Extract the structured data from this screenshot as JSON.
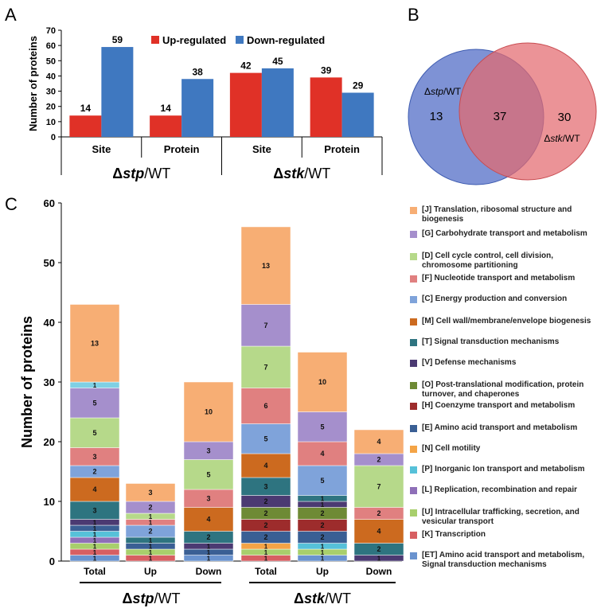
{
  "panel_labels": {
    "a": "A",
    "b": "B",
    "c": "C"
  },
  "chart_data": [
    {
      "type": "bar",
      "panel": "A",
      "ylabel": "Number of proteins",
      "ylim": [
        0,
        70
      ],
      "yticks": [
        "0",
        "10",
        "20",
        "30",
        "40",
        "50",
        "60",
        "70"
      ],
      "categories": [
        "Site",
        "Protein",
        "Site",
        "Protein"
      ],
      "groups": [
        {
          "prefix": "Δ",
          "italic": "stp",
          "suffix": "/WT"
        },
        {
          "prefix": "Δ",
          "italic": "stk",
          "suffix": "/WT"
        }
      ],
      "series": [
        {
          "name": "Up-regulated",
          "color": "#e03127",
          "values": [
            14,
            14,
            42,
            39
          ]
        },
        {
          "name": "Down-regulated",
          "color": "#3f78c0",
          "values": [
            59,
            38,
            45,
            29
          ]
        }
      ]
    },
    {
      "type": "venn",
      "panel": "B",
      "sets": [
        {
          "prefix": "Δ",
          "italic": "stp",
          "suffix": "/WT",
          "only": "13",
          "color": "#5a73c9"
        },
        {
          "prefix": "Δ",
          "italic": "stk",
          "suffix": "/WT",
          "only": "30",
          "color": "#e36a6f"
        }
      ],
      "intersection": "37"
    },
    {
      "type": "stacked_bar",
      "panel": "C",
      "ylabel": "Number of proteins",
      "ylim": [
        0,
        60
      ],
      "yticks": [
        "0",
        "10",
        "20",
        "30",
        "40",
        "50",
        "60"
      ],
      "categories": [
        "Total",
        "Up",
        "Down",
        "Total",
        "Up",
        "Down"
      ],
      "groups": [
        {
          "prefix": "Δ",
          "italic": "stp",
          "suffix": "/WT"
        },
        {
          "prefix": "Δ",
          "italic": "stk",
          "suffix": "/WT"
        }
      ],
      "series": [
        {
          "name": "[ET] Amino acid transport and metabolism, Signal transduction mechanisms",
          "color": "#6a93cf",
          "values": [
            1,
            0,
            1,
            0,
            1,
            0
          ]
        },
        {
          "name": "[K] Transcription",
          "color": "#d75f62",
          "values": [
            1,
            1,
            0,
            1,
            0,
            0
          ]
        },
        {
          "name": "[U] Intracellular trafficking, secretion, and vesicular transport",
          "color": "#a8cf6c",
          "values": [
            1,
            1,
            0,
            1,
            1,
            0
          ]
        },
        {
          "name": "[L] Replication, recombination and repair",
          "color": "#8e6fb8",
          "values": [
            1,
            0,
            0,
            0,
            0,
            0
          ]
        },
        {
          "name": "[P] Inorganic ion transport and metabolism",
          "color": "#56c1d9",
          "values": [
            1,
            0,
            0,
            0,
            1,
            0
          ]
        },
        {
          "name": "[N] Cell motility",
          "color": "#f4a446",
          "values": [
            0,
            0,
            0,
            1,
            0,
            0
          ]
        },
        {
          "name": "[E] Amino acid transport and metabolism",
          "color": "#3a5f94",
          "values": [
            1,
            1,
            1,
            2,
            2,
            0
          ]
        },
        {
          "name": "[H] Coenzyme transport and metabolism",
          "color": "#9d2c2c",
          "values": [
            0,
            0,
            0,
            2,
            2,
            0
          ]
        },
        {
          "name": "[O] Post-translational modification, protein turnover, and chaperones",
          "color": "#6e8a35",
          "values": [
            0,
            0,
            0,
            2,
            2,
            0
          ]
        },
        {
          "name": "[V] Defense mechanisms",
          "color": "#4b3a72",
          "values": [
            1,
            0,
            1,
            2,
            1,
            1
          ]
        },
        {
          "name": "[T] Signal transduction mechanisms",
          "color": "#2e7480",
          "values": [
            3,
            1,
            2,
            3,
            1,
            2
          ]
        },
        {
          "name": "[M] Cell wall/membrane/envelope biogenesis",
          "color": "#cc6a1f",
          "values": [
            4,
            0,
            4,
            4,
            0,
            4
          ]
        },
        {
          "name": "[C] Energy production and conversion",
          "color": "#7fa3da",
          "values": [
            2,
            2,
            0,
            5,
            5,
            0
          ]
        },
        {
          "name": "[F] Nucleotide transport and metabolism",
          "color": "#e08080",
          "values": [
            3,
            1,
            3,
            6,
            4,
            2
          ]
        },
        {
          "name": "[D] Cell cycle control, cell division, chromosome partitioning",
          "color": "#b6d98a",
          "values": [
            5,
            1,
            5,
            7,
            0,
            7
          ]
        },
        {
          "name": "[G] Carbohydrate transport and metabolism",
          "color": "#a58fcc",
          "values": [
            5,
            2,
            3,
            7,
            5,
            2
          ]
        },
        {
          "name": "[P] Inorganic Ion transport and metabolism",
          "color": "#7fd0e4",
          "values": [
            1,
            0,
            0,
            0,
            0,
            0
          ]
        },
        {
          "name": "[J] Translation, ribosomal structure and biogenesis",
          "color": "#f7ae74",
          "values": [
            13,
            3,
            10,
            13,
            10,
            4
          ]
        }
      ]
    }
  ],
  "legend_c": [
    {
      "label": "[J] Translation, ribosomal structure and biogenesis",
      "color": "#f7ae74"
    },
    {
      "label": "[G] Carbohydrate transport and metabolism",
      "color": "#a58fcc"
    },
    {
      "label": "[D] Cell cycle control, cell division, chromosome partitioning",
      "color": "#b6d98a"
    },
    {
      "label": "[F] Nucleotide transport and metabolism",
      "color": "#e08080"
    },
    {
      "label": "[C] Energy production and conversion",
      "color": "#7fa3da"
    },
    {
      "label": "[M] Cell wall/membrane/envelope biogenesis",
      "color": "#cc6a1f"
    },
    {
      "label": "[T] Signal transduction mechanisms",
      "color": "#2e7480"
    },
    {
      "label": "[V] Defense mechanisms",
      "color": "#4b3a72"
    },
    {
      "label": "[O] Post-translational modification, protein turnover, and chaperones",
      "color": "#6e8a35"
    },
    {
      "label": "[H] Coenzyme transport and metabolism",
      "color": "#9d2c2c"
    },
    {
      "label": "[E] Amino acid transport and metabolism",
      "color": "#3a5f94"
    },
    {
      "label": "[N] Cell motility",
      "color": "#f4a446"
    },
    {
      "label": "[P] Inorganic Ion transport and metabolism",
      "color": "#56c1d9"
    },
    {
      "label": "[L] Replication, recombination and repair",
      "color": "#8e6fb8"
    },
    {
      "label": "[U] Intracellular trafficking, secretion, and vesicular transport",
      "color": "#a8cf6c"
    },
    {
      "label": "[K] Transcription",
      "color": "#d75f62"
    },
    {
      "label": "[ET] Amino acid transport and metabolism, Signal transduction mechanisms",
      "color": "#6a93cf"
    }
  ]
}
